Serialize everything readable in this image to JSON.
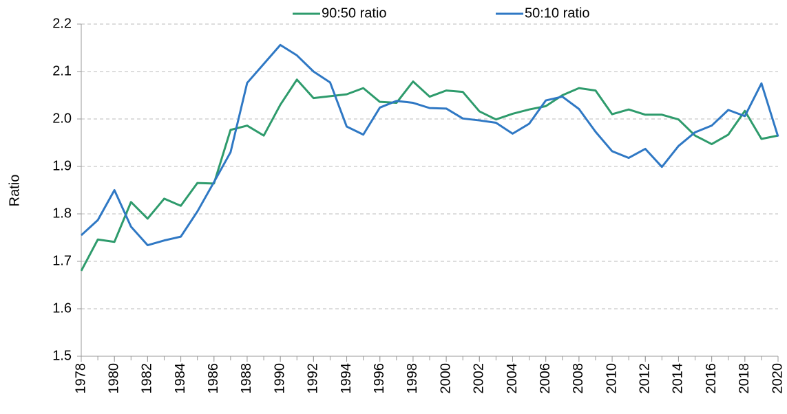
{
  "chart_data": {
    "type": "line",
    "y_label": "Ratio",
    "x": [
      1978,
      1979,
      1980,
      1981,
      1982,
      1983,
      1984,
      1985,
      1986,
      1987,
      1988,
      1989,
      1990,
      1991,
      1992,
      1993,
      1994,
      1995,
      1996,
      1997,
      1998,
      1999,
      2000,
      2001,
      2002,
      2003,
      2004,
      2005,
      2006,
      2007,
      2008,
      2009,
      2010,
      2011,
      2012,
      2013,
      2014,
      2015,
      2016,
      2017,
      2018,
      2019,
      2020
    ],
    "xlim": [
      1978,
      2020
    ],
    "xticks": [
      1978,
      1980,
      1982,
      1984,
      1986,
      1988,
      1990,
      1992,
      1994,
      1996,
      1998,
      2000,
      2002,
      2004,
      2006,
      2008,
      2010,
      2012,
      2014,
      2016,
      2018,
      2020
    ],
    "ylim": [
      1.5,
      2.2
    ],
    "yticks": [
      1.5,
      1.6,
      1.7,
      1.8,
      1.9,
      {
        "value": 2.0,
        "label": "2.0"
      },
      2.1,
      2.2
    ],
    "grid": true,
    "legend": "top",
    "series": [
      {
        "name": "90:50 ratio",
        "color": "#2e9b6c",
        "values": [
          1.68,
          1.746,
          1.741,
          1.825,
          1.79,
          1.832,
          1.817,
          1.865,
          1.864,
          1.977,
          1.986,
          1.965,
          2.03,
          2.083,
          2.044,
          2.048,
          2.052,
          2.065,
          2.036,
          2.034,
          2.079,
          2.047,
          2.06,
          2.057,
          2.016,
          1.999,
          2.011,
          2.02,
          2.027,
          2.05,
          2.065,
          2.06,
          2.01,
          2.02,
          2.009,
          2.009,
          1.999,
          1.965,
          1.947,
          1.967,
          2.017,
          1.958,
          1.965
        ]
      },
      {
        "name": "50:10 ratio",
        "color": "#2f78c4",
        "values": [
          1.755,
          1.787,
          1.85,
          1.773,
          1.734,
          1.744,
          1.752,
          1.805,
          1.867,
          1.93,
          2.076,
          2.116,
          2.156,
          2.134,
          2.1,
          2.077,
          1.984,
          1.967,
          2.024,
          2.038,
          2.034,
          2.023,
          2.022,
          2.001,
          1.997,
          1.992,
          1.969,
          1.99,
          2.039,
          2.047,
          2.021,
          1.973,
          1.932,
          1.918,
          1.937,
          1.899,
          1.943,
          1.972,
          1.986,
          2.019,
          2.006,
          2.075,
          1.963
        ]
      }
    ]
  }
}
